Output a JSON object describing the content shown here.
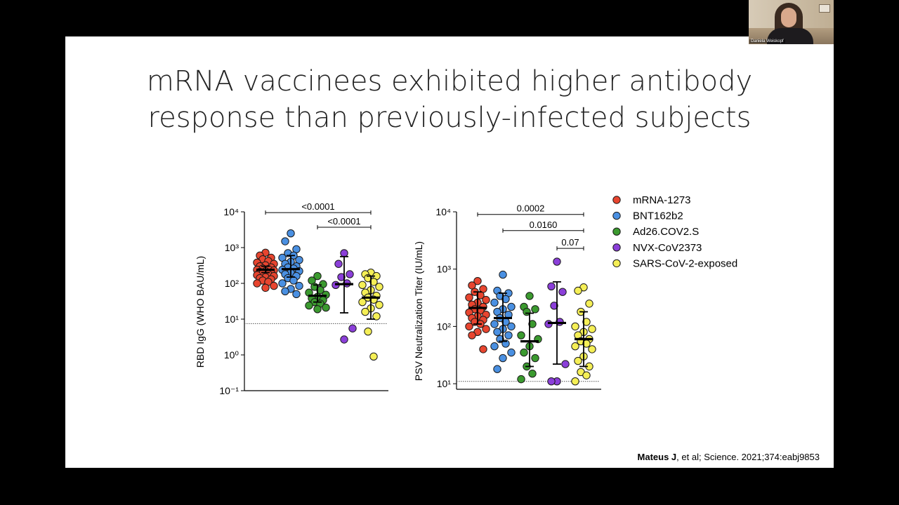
{
  "title_lines": [
    "mRNA vaccinees exhibited higher antibody",
    "response than previously-infected subjects"
  ],
  "citation": {
    "author": "Mateus J",
    "rest": ", et al; Science. 2021;374:eabj9853"
  },
  "participant": {
    "name": "Daniela Weiskopf"
  },
  "legend": [
    {
      "label": "mRNA-1273",
      "color": "#e8452f"
    },
    {
      "label": "BNT162b2",
      "color": "#4a90e2"
    },
    {
      "label": "Ad26.COV2.S",
      "color": "#3b9a2f"
    },
    {
      "label": "NVX-CoV2373",
      "color": "#8b3fd9"
    },
    {
      "label": "SARS-CoV-2-exposed",
      "color": "#f5ef56"
    }
  ],
  "chart_data": [
    {
      "type": "scatter",
      "ylabel": "RBD IgG (WHO BAU/mL)",
      "yscale": "log",
      "ylim": [
        0.1,
        10000
      ],
      "yticks": [
        "10⁻¹",
        "10⁰",
        "10¹",
        "10²",
        "10³",
        "10⁴"
      ],
      "threshold": 7.5,
      "groups": [
        {
          "name": "mRNA-1273",
          "color": "#e8452f",
          "median": 240,
          "lower": 200,
          "upper": 300,
          "points": [
            720,
            600,
            520,
            470,
            420,
            380,
            350,
            320,
            300,
            280,
            260,
            250,
            240,
            230,
            220,
            210,
            200,
            190,
            180,
            170,
            160,
            150,
            140,
            130,
            120,
            110,
            100,
            85,
            75
          ]
        },
        {
          "name": "BNT162b2",
          "color": "#4a90e2",
          "median": 250,
          "lower": 150,
          "upper": 600,
          "points": [
            2500,
            1500,
            900,
            700,
            600,
            520,
            450,
            400,
            350,
            300,
            280,
            260,
            240,
            220,
            200,
            180,
            160,
            140,
            120,
            100,
            85,
            70,
            60,
            50
          ]
        },
        {
          "name": "Ad26.COV2.S",
          "color": "#3b9a2f",
          "median": 45,
          "lower": 30,
          "upper": 90,
          "points": [
            160,
            120,
            95,
            80,
            65,
            55,
            48,
            42,
            38,
            34,
            30,
            27,
            24,
            21,
            19
          ]
        },
        {
          "name": "NVX-CoV2373",
          "color": "#8b3fd9",
          "median": 95,
          "lower": 15,
          "upper": 560,
          "points": [
            700,
            350,
            180,
            150,
            100,
            90,
            5.5,
            2.7
          ]
        },
        {
          "name": "SARS-CoV-2-exposed",
          "color": "#f5ef56",
          "median": 40,
          "lower": 10,
          "upper": 160,
          "points": [
            200,
            180,
            160,
            140,
            110,
            90,
            80,
            65,
            55,
            45,
            40,
            35,
            30,
            25,
            20,
            16,
            12,
            4.5,
            0.9
          ]
        }
      ],
      "comparisons": [
        {
          "from": 0,
          "to": 4,
          "label": "<0.0001",
          "y": 9500
        },
        {
          "from": 2,
          "to": 4,
          "label": "<0.0001",
          "y": 3700
        }
      ]
    },
    {
      "type": "scatter",
      "ylabel": "PSV Neutralization Titer (IU/mL)",
      "yscale": "log",
      "ylim": [
        8,
        10000
      ],
      "yticks": [
        "10¹",
        "10²",
        "10³",
        "10⁴"
      ],
      "threshold": 11,
      "groups": [
        {
          "name": "mRNA-1273",
          "color": "#e8452f",
          "median": 210,
          "lower": 110,
          "upper": 400,
          "points": [
            620,
            520,
            450,
            400,
            350,
            320,
            290,
            260,
            240,
            220,
            200,
            190,
            175,
            160,
            150,
            140,
            130,
            120,
            110,
            100,
            90,
            80,
            70,
            40
          ]
        },
        {
          "name": "BNT162b2",
          "color": "#4a90e2",
          "median": 140,
          "lower": 55,
          "upper": 380,
          "points": [
            800,
            420,
            380,
            340,
            300,
            260,
            220,
            200,
            180,
            160,
            140,
            120,
            110,
            100,
            90,
            80,
            70,
            60,
            50,
            45,
            35,
            28,
            18
          ]
        },
        {
          "name": "Ad26.COV2.S",
          "color": "#3b9a2f",
          "median": 55,
          "lower": 20,
          "upper": 170,
          "points": [
            340,
            220,
            200,
            180,
            110,
            70,
            60,
            45,
            35,
            28,
            20,
            15,
            12
          ]
        },
        {
          "name": "NVX-CoV2373",
          "color": "#8b3fd9",
          "median": 115,
          "lower": 22,
          "upper": 600,
          "points": [
            1350,
            500,
            400,
            230,
            120,
            110,
            22,
            11,
            11
          ]
        },
        {
          "name": "SARS-CoV-2-exposed",
          "color": "#f5ef56",
          "median": 60,
          "lower": 20,
          "upper": 180,
          "points": [
            480,
            420,
            250,
            180,
            120,
            100,
            90,
            80,
            70,
            60,
            55,
            50,
            45,
            40,
            30,
            25,
            20,
            16,
            14,
            11
          ]
        }
      ],
      "comparisons": [
        {
          "from": 0,
          "to": 4,
          "label": "0.0002",
          "y": 9000
        },
        {
          "from": 1,
          "to": 4,
          "label": "0.0160",
          "y": 4700
        },
        {
          "from": 3,
          "to": 4,
          "label": "0.07",
          "y": 2300
        }
      ]
    }
  ]
}
